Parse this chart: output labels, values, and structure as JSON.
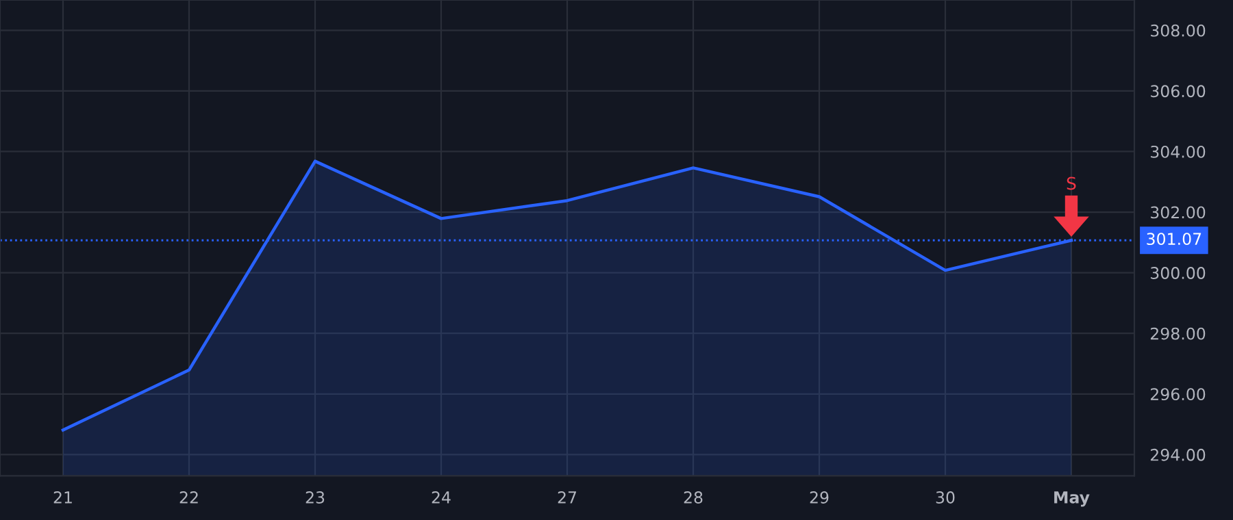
{
  "chart_data": {
    "type": "area",
    "categories": [
      "21",
      "22",
      "23",
      "24",
      "27",
      "28",
      "29",
      "30",
      "May"
    ],
    "series": [
      {
        "color": "#2962ff",
        "values": [
          294.81,
          296.79,
          303.68,
          301.79,
          302.38,
          303.46,
          302.51,
          300.08,
          301.07
        ]
      }
    ],
    "ylim": [
      293.3,
      309
    ],
    "yticks": [
      {
        "value": 294,
        "label": "294.00"
      },
      {
        "value": 296,
        "label": "296.00"
      },
      {
        "value": 298,
        "label": "298.00"
      },
      {
        "value": 300,
        "label": "300.00"
      },
      {
        "value": 302,
        "label": "302.00"
      },
      {
        "value": 304,
        "label": "304.00"
      },
      {
        "value": 306,
        "label": "306.00"
      },
      {
        "value": 308,
        "label": "308.00"
      }
    ],
    "ref_lines": [
      {
        "axis": "y",
        "value": 301.07,
        "label": "301.07",
        "color": "#2962ff",
        "line_style": "dotted"
      }
    ],
    "annotations": [
      "S"
    ],
    "grid": true,
    "marker": "none",
    "line_style": "solid"
  }
}
